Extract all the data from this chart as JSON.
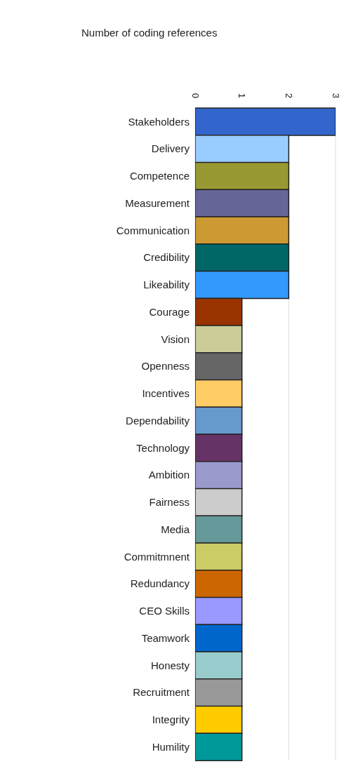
{
  "chart_data": {
    "type": "bar",
    "orientation": "horizontal",
    "title": "Number of coding references",
    "categories": [
      "Stakeholders",
      "Delivery",
      "Competence",
      "Measurement",
      "Communication",
      "Credibility",
      "Likeability",
      "Courage",
      "Vision",
      "Openness",
      "Incentives",
      "Dependability",
      "Technology",
      "Ambition",
      "Fairness",
      "Media",
      "Commitmnent",
      "Redundancy",
      "CEO Skills",
      "Teamwork",
      "Honesty",
      "Recruitment",
      "Integrity",
      "Humility"
    ],
    "values": [
      3,
      2,
      2,
      2,
      2,
      2,
      2,
      1,
      1,
      1,
      1,
      1,
      1,
      1,
      1,
      1,
      1,
      1,
      1,
      1,
      1,
      1,
      1,
      1
    ],
    "colors": [
      "#3366cc",
      "#99ccff",
      "#999933",
      "#666699",
      "#cc9933",
      "#006666",
      "#3399ff",
      "#993300",
      "#cccc99",
      "#666666",
      "#ffcc66",
      "#6699cc",
      "#663366",
      "#9999cc",
      "#cccccc",
      "#669999",
      "#cccc66",
      "#cc6600",
      "#9999ff",
      "#0066cc",
      "#99cccc",
      "#999999",
      "#ffcc00",
      "#009999"
    ],
    "xlim": [
      0,
      3
    ],
    "xticks": [
      0,
      1,
      2,
      3
    ],
    "grid": "x"
  }
}
